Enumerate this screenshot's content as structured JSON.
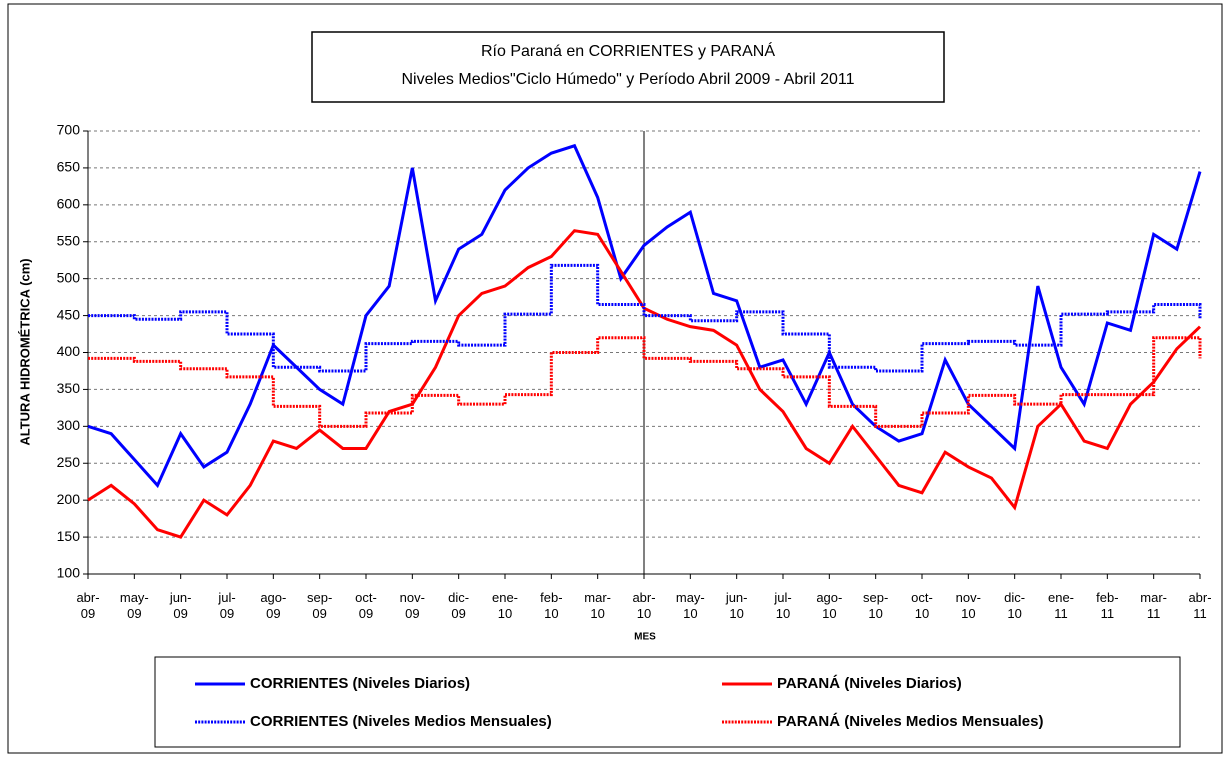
{
  "chart_data": {
    "type": "line",
    "title": "Río Paraná en CORRIENTES y PARANÁ",
    "subtitle": "Niveles Medios\"Ciclo Húmedo\" y Período Abril 2009 - Abril 2011",
    "ylabel": "ALTURA HIDROMÉTRICA (cm)",
    "xlabel": "MES",
    "x": [
      0,
      0.5,
      1,
      1.5,
      2,
      2.5,
      3,
      3.5,
      4,
      4.5,
      5,
      5.5,
      6,
      6.5,
      7,
      7.5,
      8,
      8.5,
      9,
      9.5,
      10,
      10.5,
      11,
      11.5,
      12,
      12.5,
      13,
      13.5,
      14,
      14.5,
      15,
      15.5,
      16,
      16.5,
      17,
      17.5,
      18,
      18.5,
      19,
      19.5,
      20,
      20.5,
      21,
      21.5,
      22,
      22.5,
      23,
      23.5,
      24
    ],
    "xlim": [
      0,
      24
    ],
    "xticks": [
      {
        "value": 0,
        "label": "abr-\n09"
      },
      {
        "value": 1,
        "label": "may-\n09"
      },
      {
        "value": 2,
        "label": "jun-\n09"
      },
      {
        "value": 3,
        "label": "jul-\n09"
      },
      {
        "value": 4,
        "label": "ago-\n09"
      },
      {
        "value": 5,
        "label": "sep-\n09"
      },
      {
        "value": 6,
        "label": "oct-\n09"
      },
      {
        "value": 7,
        "label": "nov-\n09"
      },
      {
        "value": 8,
        "label": "dic-\n09"
      },
      {
        "value": 9,
        "label": "ene-\n10"
      },
      {
        "value": 10,
        "label": "feb-\n10"
      },
      {
        "value": 11,
        "label": "mar-\n10"
      },
      {
        "value": 12,
        "label": "abr-\n10"
      },
      {
        "value": 13,
        "label": "may-\n10"
      },
      {
        "value": 14,
        "label": "jun-\n10"
      },
      {
        "value": 15,
        "label": "jul-\n10"
      },
      {
        "value": 16,
        "label": "ago-\n10"
      },
      {
        "value": 17,
        "label": "sep-\n10"
      },
      {
        "value": 18,
        "label": "oct-\n10"
      },
      {
        "value": 19,
        "label": "nov-\n10"
      },
      {
        "value": 20,
        "label": "dic-\n10"
      },
      {
        "value": 21,
        "label": "ene-\n11"
      },
      {
        "value": 22,
        "label": "feb-\n11"
      },
      {
        "value": 23,
        "label": "mar-\n11"
      },
      {
        "value": 24,
        "label": "abr-\n11"
      }
    ],
    "ylim": [
      100,
      700
    ],
    "yticks": [
      100,
      150,
      200,
      250,
      300,
      350,
      400,
      450,
      500,
      550,
      600,
      650,
      700
    ],
    "grid": true,
    "series": [
      {
        "name": "CORRIENTES (Niveles Diarios)",
        "color": "#0000ff",
        "step": false,
        "values": [
          300,
          290,
          255,
          220,
          290,
          245,
          265,
          330,
          410,
          380,
          350,
          330,
          450,
          490,
          650,
          470,
          540,
          560,
          620,
          650,
          670,
          680,
          610,
          500,
          545,
          570,
          590,
          480,
          470,
          380,
          390,
          330,
          400,
          330,
          300,
          280,
          290,
          390,
          330,
          300,
          270,
          490,
          380,
          330,
          440,
          430,
          560,
          540,
          645
        ]
      },
      {
        "name": "PARANÁ (Niveles Diarios)",
        "color": "#ff0000",
        "step": false,
        "values": [
          200,
          220,
          195,
          160,
          150,
          200,
          180,
          220,
          280,
          270,
          295,
          270,
          270,
          320,
          330,
          380,
          450,
          480,
          490,
          515,
          530,
          565,
          560,
          510,
          460,
          445,
          435,
          430,
          410,
          350,
          320,
          270,
          250,
          300,
          260,
          220,
          210,
          265,
          245,
          230,
          190,
          300,
          330,
          280,
          270,
          330,
          360,
          405,
          435
        ]
      },
      {
        "name": "CORRIENTES (Niveles Medios Mensuales)",
        "color": "#0000ff",
        "step": true,
        "values": [
          450,
          450,
          445,
          445,
          455,
          455,
          425,
          425,
          380,
          380,
          375,
          375,
          412,
          412,
          415,
          415,
          410,
          410,
          452,
          452,
          518,
          518,
          465,
          465,
          450,
          450,
          443,
          443,
          455,
          455,
          425,
          425,
          380,
          380,
          375,
          375,
          412,
          412,
          415,
          415,
          410,
          410,
          452,
          452,
          455,
          455,
          465,
          465,
          445
        ]
      },
      {
        "name": "PARANÁ (Niveles Medios Mensuales)",
        "color": "#ff0000",
        "step": true,
        "values": [
          392,
          392,
          388,
          388,
          378,
          378,
          367,
          367,
          327,
          327,
          300,
          300,
          318,
          318,
          342,
          342,
          330,
          330,
          343,
          343,
          400,
          400,
          420,
          420,
          392,
          392,
          388,
          388,
          378,
          378,
          367,
          367,
          327,
          327,
          300,
          300,
          318,
          318,
          342,
          342,
          330,
          330,
          343,
          343,
          343,
          343,
          420,
          420,
          392
        ]
      }
    ]
  }
}
